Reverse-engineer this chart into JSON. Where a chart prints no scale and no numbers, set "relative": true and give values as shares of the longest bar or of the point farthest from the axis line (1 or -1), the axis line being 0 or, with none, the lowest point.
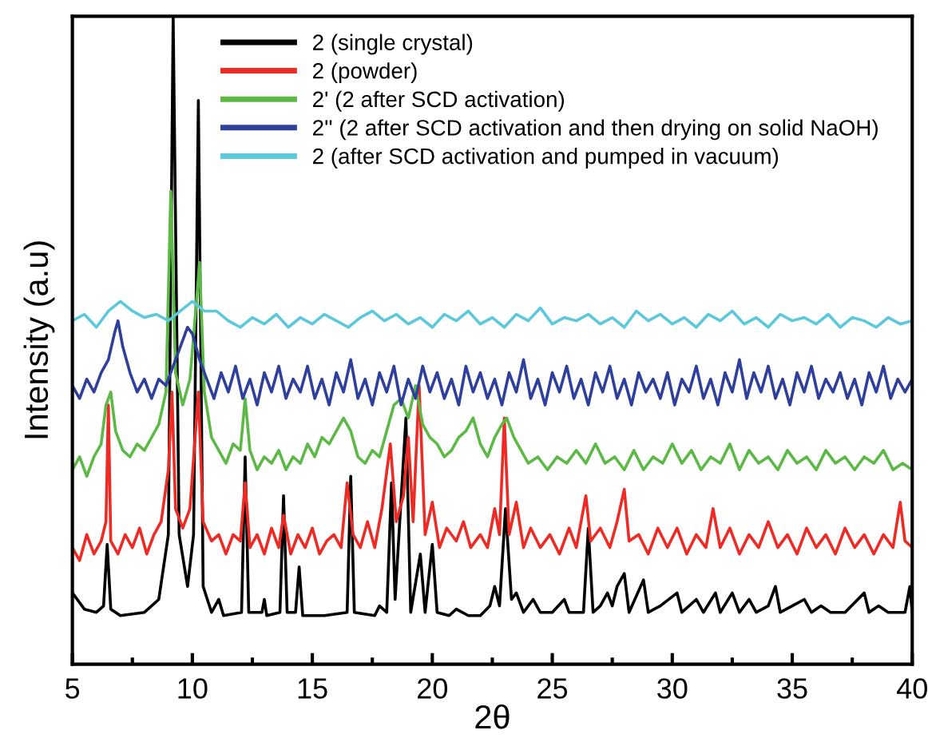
{
  "chart_data": {
    "type": "line",
    "xlabel": "2θ",
    "ylabel": "Intensity (a.u)",
    "relative": true,
    "legend": "top",
    "grid": false,
    "xlim": [
      5,
      40
    ],
    "xticks": [
      5,
      {
        "value": 7.5,
        "label": null
      },
      10,
      {
        "value": 12.5,
        "label": null
      },
      15,
      {
        "value": 17.5,
        "label": null
      },
      20,
      {
        "value": 22.5,
        "label": null
      },
      25,
      {
        "value": 27.5,
        "label": null
      },
      30,
      {
        "value": 32.5,
        "label": null
      },
      35,
      {
        "value": 37.5,
        "label": null
      },
      40
    ],
    "series": [
      {
        "name": "2 (single crystal)",
        "color": "#000000",
        "x": [
          5.0,
          5.5,
          6.0,
          6.3,
          6.45,
          6.6,
          7.0,
          8.0,
          8.6,
          9.0,
          9.2,
          9.45,
          9.8,
          10.05,
          10.25,
          10.45,
          10.8,
          11.1,
          11.3,
          12.05,
          12.2,
          12.35,
          12.9,
          13.0,
          13.1,
          13.65,
          13.8,
          13.95,
          14.3,
          14.45,
          14.6,
          15.5,
          16.45,
          16.6,
          16.75,
          17.6,
          17.8,
          18.1,
          18.3,
          18.45,
          18.9,
          19.1,
          19.5,
          19.7,
          20.0,
          20.2,
          20.7,
          21.0,
          21.5,
          22.0,
          22.4,
          22.6,
          22.8,
          23.05,
          23.3,
          23.5,
          23.8,
          24.2,
          24.5,
          25.0,
          25.5,
          25.7,
          26.3,
          26.5,
          26.7,
          27.0,
          27.3,
          27.5,
          27.7,
          28.0,
          28.2,
          28.8,
          29.0,
          29.5,
          30.2,
          30.4,
          31.0,
          31.3,
          31.8,
          32.0,
          32.5,
          32.8,
          33.2,
          33.5,
          34.0,
          34.3,
          34.5,
          35.0,
          35.5,
          35.8,
          36.2,
          36.6,
          37.2,
          38.0,
          38.2,
          38.6,
          39.0,
          39.7,
          39.9,
          40.0
        ],
        "values": [
          0.11,
          0.085,
          0.08,
          0.09,
          0.185,
          0.085,
          0.075,
          0.08,
          0.1,
          0.2,
          1.0,
          0.2,
          0.12,
          0.2,
          0.87,
          0.12,
          0.08,
          0.1,
          0.075,
          0.08,
          0.32,
          0.08,
          0.08,
          0.1,
          0.075,
          0.08,
          0.26,
          0.08,
          0.08,
          0.15,
          0.075,
          0.075,
          0.08,
          0.29,
          0.08,
          0.075,
          0.09,
          0.08,
          0.28,
          0.1,
          0.38,
          0.08,
          0.17,
          0.08,
          0.185,
          0.08,
          0.075,
          0.085,
          0.075,
          0.075,
          0.09,
          0.12,
          0.09,
          0.24,
          0.1,
          0.11,
          0.08,
          0.1,
          0.08,
          0.08,
          0.1,
          0.08,
          0.08,
          0.21,
          0.08,
          0.09,
          0.11,
          0.09,
          0.12,
          0.14,
          0.08,
          0.13,
          0.08,
          0.09,
          0.11,
          0.08,
          0.1,
          0.08,
          0.11,
          0.08,
          0.11,
          0.08,
          0.1,
          0.08,
          0.09,
          0.12,
          0.08,
          0.09,
          0.1,
          0.08,
          0.09,
          0.08,
          0.08,
          0.11,
          0.08,
          0.09,
          0.08,
          0.08,
          0.12,
          0.08
        ]
      },
      {
        "name": "2 (powder)",
        "color": "#ee2a24",
        "x": [
          5.0,
          5.3,
          5.6,
          5.9,
          6.2,
          6.4,
          6.5,
          6.6,
          6.9,
          7.2,
          7.5,
          7.8,
          8.1,
          8.4,
          8.7,
          9.0,
          9.15,
          9.3,
          9.6,
          9.9,
          10.25,
          10.45,
          10.8,
          11.1,
          11.4,
          11.7,
          12.0,
          12.2,
          12.4,
          12.7,
          13.0,
          13.3,
          13.6,
          13.8,
          14.1,
          14.4,
          14.7,
          15.0,
          15.3,
          15.6,
          15.9,
          16.2,
          16.45,
          16.7,
          17.0,
          17.3,
          17.6,
          17.9,
          18.25,
          18.5,
          18.8,
          19.0,
          19.2,
          19.45,
          19.7,
          20.0,
          20.3,
          20.6,
          21.0,
          21.3,
          21.6,
          22.0,
          22.3,
          22.6,
          22.8,
          23.0,
          23.2,
          23.5,
          23.8,
          24.1,
          24.5,
          24.9,
          25.3,
          25.7,
          26.0,
          26.4,
          26.6,
          27.0,
          27.4,
          27.7,
          28.0,
          28.2,
          28.6,
          29.0,
          29.4,
          29.8,
          30.2,
          30.6,
          31.0,
          31.4,
          31.7,
          32.0,
          32.4,
          32.8,
          33.2,
          33.6,
          34.0,
          34.4,
          34.8,
          35.2,
          35.6,
          36.0,
          36.4,
          36.8,
          37.2,
          37.6,
          38.0,
          38.4,
          38.8,
          39.2,
          39.5,
          39.7,
          40.0
        ],
        "values": [
          0.18,
          0.16,
          0.2,
          0.17,
          0.19,
          0.22,
          0.4,
          0.19,
          0.17,
          0.2,
          0.18,
          0.21,
          0.17,
          0.2,
          0.22,
          0.3,
          0.42,
          0.24,
          0.21,
          0.24,
          0.42,
          0.22,
          0.19,
          0.2,
          0.17,
          0.2,
          0.19,
          0.28,
          0.18,
          0.2,
          0.17,
          0.21,
          0.18,
          0.23,
          0.17,
          0.2,
          0.18,
          0.21,
          0.17,
          0.19,
          0.2,
          0.18,
          0.28,
          0.2,
          0.18,
          0.22,
          0.18,
          0.24,
          0.34,
          0.22,
          0.26,
          0.35,
          0.22,
          0.43,
          0.2,
          0.25,
          0.18,
          0.21,
          0.19,
          0.22,
          0.18,
          0.2,
          0.18,
          0.24,
          0.2,
          0.38,
          0.2,
          0.25,
          0.18,
          0.21,
          0.18,
          0.2,
          0.17,
          0.21,
          0.18,
          0.26,
          0.19,
          0.21,
          0.18,
          0.22,
          0.27,
          0.19,
          0.2,
          0.17,
          0.21,
          0.18,
          0.21,
          0.17,
          0.2,
          0.18,
          0.24,
          0.18,
          0.21,
          0.17,
          0.2,
          0.18,
          0.22,
          0.18,
          0.2,
          0.17,
          0.21,
          0.18,
          0.2,
          0.17,
          0.21,
          0.18,
          0.2,
          0.17,
          0.2,
          0.18,
          0.25,
          0.19,
          0.18
        ]
      },
      {
        "name": "2' (2 after SCD activation)",
        "color": "#5cb946",
        "x": [
          5.0,
          5.3,
          5.6,
          5.9,
          6.2,
          6.4,
          6.6,
          6.8,
          7.1,
          7.4,
          7.7,
          8.0,
          8.3,
          8.6,
          8.9,
          9.1,
          9.3,
          9.6,
          9.9,
          10.15,
          10.3,
          10.5,
          10.8,
          11.1,
          11.4,
          11.7,
          12.0,
          12.2,
          12.4,
          12.7,
          13.0,
          13.3,
          13.6,
          13.9,
          14.2,
          14.5,
          14.8,
          15.1,
          15.4,
          15.7,
          16.0,
          16.3,
          16.6,
          16.9,
          17.2,
          17.5,
          17.8,
          18.1,
          18.4,
          18.7,
          19.0,
          19.3,
          19.6,
          19.9,
          20.2,
          20.5,
          20.8,
          21.1,
          21.4,
          21.7,
          22.0,
          22.3,
          22.6,
          22.9,
          23.1,
          23.4,
          23.7,
          24.0,
          24.4,
          24.8,
          25.2,
          25.6,
          26.0,
          26.4,
          26.8,
          27.2,
          27.6,
          28.0,
          28.4,
          28.8,
          29.2,
          29.6,
          30.0,
          30.4,
          30.8,
          31.2,
          31.6,
          32.0,
          32.4,
          32.8,
          33.2,
          33.6,
          34.0,
          34.4,
          34.8,
          35.2,
          35.6,
          36.0,
          36.4,
          36.8,
          37.2,
          37.6,
          38.0,
          38.4,
          38.8,
          39.2,
          39.6,
          40.0
        ],
        "values": [
          0.3,
          0.32,
          0.29,
          0.32,
          0.34,
          0.4,
          0.42,
          0.36,
          0.33,
          0.32,
          0.34,
          0.33,
          0.35,
          0.37,
          0.42,
          0.73,
          0.45,
          0.4,
          0.44,
          0.55,
          0.62,
          0.42,
          0.35,
          0.33,
          0.31,
          0.34,
          0.33,
          0.41,
          0.33,
          0.3,
          0.32,
          0.31,
          0.33,
          0.3,
          0.32,
          0.31,
          0.34,
          0.32,
          0.35,
          0.34,
          0.36,
          0.38,
          0.36,
          0.32,
          0.31,
          0.33,
          0.32,
          0.36,
          0.4,
          0.41,
          0.38,
          0.43,
          0.37,
          0.35,
          0.34,
          0.32,
          0.33,
          0.35,
          0.36,
          0.38,
          0.34,
          0.32,
          0.35,
          0.37,
          0.38,
          0.35,
          0.33,
          0.31,
          0.32,
          0.3,
          0.32,
          0.31,
          0.33,
          0.31,
          0.34,
          0.31,
          0.32,
          0.3,
          0.33,
          0.3,
          0.32,
          0.31,
          0.34,
          0.31,
          0.33,
          0.3,
          0.32,
          0.31,
          0.34,
          0.3,
          0.33,
          0.31,
          0.32,
          0.3,
          0.33,
          0.31,
          0.32,
          0.3,
          0.33,
          0.31,
          0.32,
          0.3,
          0.32,
          0.31,
          0.33,
          0.3,
          0.31,
          0.3
        ]
      },
      {
        "name": "2'' (2 after SCD activation and then drying on solid NaOH)",
        "color": "#2e3f9c",
        "x": [
          5.0,
          5.3,
          5.6,
          5.9,
          6.2,
          6.5,
          6.75,
          6.9,
          7.1,
          7.4,
          7.7,
          8.0,
          8.3,
          8.6,
          8.9,
          9.2,
          9.5,
          9.8,
          10.0,
          10.3,
          10.6,
          10.9,
          11.2,
          11.5,
          11.8,
          12.1,
          12.4,
          12.7,
          13.0,
          13.3,
          13.6,
          13.9,
          14.2,
          14.5,
          14.8,
          15.1,
          15.4,
          15.7,
          16.0,
          16.3,
          16.6,
          16.9,
          17.2,
          17.5,
          17.8,
          18.1,
          18.4,
          18.7,
          19.0,
          19.3,
          19.6,
          19.9,
          20.2,
          20.5,
          20.8,
          21.1,
          21.4,
          21.7,
          22.0,
          22.3,
          22.6,
          22.9,
          23.2,
          23.5,
          23.8,
          24.1,
          24.4,
          24.7,
          25.0,
          25.3,
          25.6,
          25.9,
          26.2,
          26.5,
          26.8,
          27.1,
          27.4,
          27.7,
          28.0,
          28.3,
          28.6,
          28.9,
          29.2,
          29.5,
          29.8,
          30.1,
          30.4,
          30.7,
          31.0,
          31.3,
          31.6,
          31.9,
          32.2,
          32.5,
          32.8,
          33.1,
          33.4,
          33.7,
          34.0,
          34.3,
          34.6,
          34.9,
          35.2,
          35.5,
          35.8,
          36.1,
          36.4,
          36.7,
          37.0,
          37.3,
          37.6,
          37.9,
          38.2,
          38.5,
          38.8,
          39.1,
          39.4,
          39.7,
          40.0
        ],
        "values": [
          0.43,
          0.41,
          0.44,
          0.42,
          0.45,
          0.47,
          0.51,
          0.53,
          0.49,
          0.45,
          0.42,
          0.44,
          0.41,
          0.44,
          0.43,
          0.46,
          0.49,
          0.52,
          0.51,
          0.47,
          0.44,
          0.41,
          0.45,
          0.42,
          0.46,
          0.41,
          0.44,
          0.4,
          0.45,
          0.42,
          0.46,
          0.41,
          0.44,
          0.42,
          0.46,
          0.41,
          0.44,
          0.4,
          0.45,
          0.42,
          0.47,
          0.41,
          0.44,
          0.4,
          0.45,
          0.42,
          0.46,
          0.4,
          0.44,
          0.41,
          0.46,
          0.42,
          0.45,
          0.41,
          0.44,
          0.4,
          0.46,
          0.42,
          0.45,
          0.41,
          0.44,
          0.4,
          0.45,
          0.42,
          0.47,
          0.41,
          0.44,
          0.4,
          0.45,
          0.42,
          0.46,
          0.41,
          0.44,
          0.4,
          0.45,
          0.42,
          0.46,
          0.41,
          0.44,
          0.4,
          0.45,
          0.42,
          0.44,
          0.41,
          0.45,
          0.4,
          0.44,
          0.42,
          0.46,
          0.41,
          0.44,
          0.4,
          0.45,
          0.42,
          0.47,
          0.41,
          0.45,
          0.42,
          0.46,
          0.41,
          0.44,
          0.4,
          0.45,
          0.42,
          0.46,
          0.41,
          0.44,
          0.42,
          0.45,
          0.41,
          0.44,
          0.4,
          0.45,
          0.42,
          0.46,
          0.41,
          0.44,
          0.42,
          0.44
        ]
      },
      {
        "name": "2 (after SCD activation and pumped in vacuum)",
        "color": "#5bc8dc",
        "x": [
          5.0,
          5.5,
          6.0,
          6.5,
          7.0,
          7.5,
          8.0,
          8.5,
          9.0,
          9.5,
          10.0,
          10.5,
          11.0,
          11.5,
          12.0,
          12.5,
          13.0,
          13.5,
          14.0,
          14.5,
          15.0,
          15.5,
          16.0,
          16.5,
          17.0,
          17.5,
          18.0,
          18.5,
          19.0,
          19.5,
          20.0,
          20.5,
          21.0,
          21.5,
          22.0,
          22.5,
          23.0,
          23.5,
          24.0,
          24.5,
          25.0,
          25.5,
          26.0,
          26.5,
          27.0,
          27.5,
          28.0,
          28.5,
          29.0,
          29.5,
          30.0,
          30.5,
          31.0,
          31.5,
          32.0,
          32.5,
          33.0,
          33.5,
          34.0,
          34.5,
          35.0,
          35.5,
          36.0,
          36.5,
          37.0,
          37.5,
          38.0,
          38.5,
          39.0,
          39.5,
          40.0
        ],
        "values": [
          0.53,
          0.54,
          0.52,
          0.545,
          0.56,
          0.545,
          0.535,
          0.54,
          0.53,
          0.545,
          0.56,
          0.545,
          0.545,
          0.53,
          0.52,
          0.535,
          0.525,
          0.54,
          0.52,
          0.535,
          0.525,
          0.54,
          0.53,
          0.52,
          0.535,
          0.545,
          0.53,
          0.54,
          0.525,
          0.535,
          0.52,
          0.54,
          0.53,
          0.545,
          0.525,
          0.535,
          0.52,
          0.54,
          0.53,
          0.55,
          0.525,
          0.535,
          0.53,
          0.54,
          0.525,
          0.535,
          0.52,
          0.545,
          0.53,
          0.54,
          0.525,
          0.535,
          0.52,
          0.54,
          0.53,
          0.545,
          0.525,
          0.535,
          0.52,
          0.54,
          0.53,
          0.535,
          0.525,
          0.54,
          0.52,
          0.535,
          0.53,
          0.52,
          0.535,
          0.525,
          0.53
        ]
      }
    ]
  }
}
